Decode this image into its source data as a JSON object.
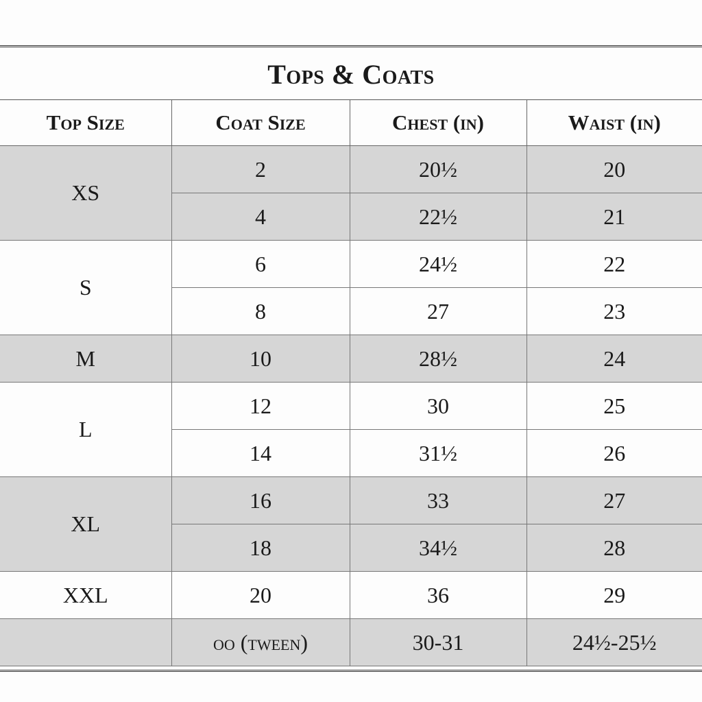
{
  "title": "Tops & Coats",
  "headers": [
    "Top Size",
    "Coat Size",
    "Chest (in)",
    "Waist (in)"
  ],
  "groups": [
    {
      "top": "XS",
      "rows": [
        {
          "coat": "2",
          "chest": "20½",
          "waist": "20"
        },
        {
          "coat": "4",
          "chest": "22½",
          "waist": "21"
        }
      ]
    },
    {
      "top": "S",
      "rows": [
        {
          "coat": "6",
          "chest": "24½",
          "waist": "22"
        },
        {
          "coat": "8",
          "chest": "27",
          "waist": "23"
        }
      ]
    },
    {
      "top": "M",
      "rows": [
        {
          "coat": "10",
          "chest": "28½",
          "waist": "24"
        }
      ]
    },
    {
      "top": "L",
      "rows": [
        {
          "coat": "12",
          "chest": "30",
          "waist": "25"
        },
        {
          "coat": "14",
          "chest": "31½",
          "waist": "26"
        }
      ]
    },
    {
      "top": "XL",
      "rows": [
        {
          "coat": "16",
          "chest": "33",
          "waist": "27"
        },
        {
          "coat": "18",
          "chest": "34½",
          "waist": "28"
        }
      ]
    },
    {
      "top": "XXL",
      "rows": [
        {
          "coat": "20",
          "chest": "36",
          "waist": "29"
        }
      ]
    },
    {
      "top": "",
      "rows": [
        {
          "coat": "oo (tween)",
          "chest": "30-31",
          "waist": "24½-25½"
        }
      ]
    }
  ]
}
